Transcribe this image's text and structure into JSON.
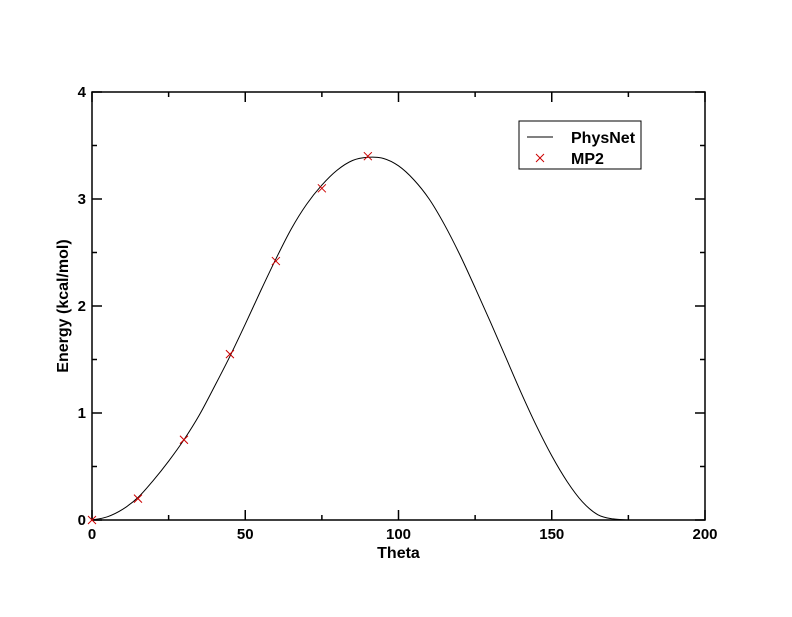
{
  "chart_data": {
    "type": "line",
    "title": "",
    "xlabel": "Theta",
    "ylabel": "Energy (kcal/mol)",
    "xlim": [
      0,
      200
    ],
    "ylim": [
      0,
      4
    ],
    "x_ticks": [
      0,
      50,
      100,
      150,
      200
    ],
    "x_tick_labels": [
      "0",
      "50",
      "100",
      "150",
      "200"
    ],
    "y_ticks": [
      0,
      1,
      2,
      3,
      4
    ],
    "y_tick_labels": [
      "0",
      "1",
      "2",
      "3",
      "4"
    ],
    "grid": false,
    "legend_position": "top-right",
    "series": [
      {
        "name": "PhysNet",
        "type": "line",
        "color": "#000000",
        "x": [
          0,
          5,
          10,
          15,
          20,
          25,
          30,
          35,
          40,
          45,
          50,
          55,
          60,
          65,
          70,
          75,
          80,
          85,
          90,
          95,
          100,
          105,
          110,
          115,
          120,
          125,
          130,
          135,
          140,
          145,
          150,
          155,
          160,
          165,
          170,
          175
        ],
        "values": [
          0.0,
          0.03,
          0.1,
          0.21,
          0.37,
          0.55,
          0.75,
          0.98,
          1.25,
          1.53,
          1.83,
          2.14,
          2.44,
          2.72,
          2.95,
          3.13,
          3.27,
          3.36,
          3.39,
          3.38,
          3.31,
          3.18,
          3.0,
          2.76,
          2.48,
          2.17,
          1.85,
          1.52,
          1.19,
          0.88,
          0.6,
          0.36,
          0.17,
          0.05,
          0.01,
          0.0
        ]
      },
      {
        "name": "MP2",
        "type": "scatter",
        "marker": "x",
        "color": "#cc0000",
        "x": [
          0,
          15,
          30,
          45,
          60,
          75,
          90
        ],
        "values": [
          0.0,
          0.2,
          0.75,
          1.55,
          2.42,
          3.1,
          3.4
        ]
      }
    ]
  }
}
